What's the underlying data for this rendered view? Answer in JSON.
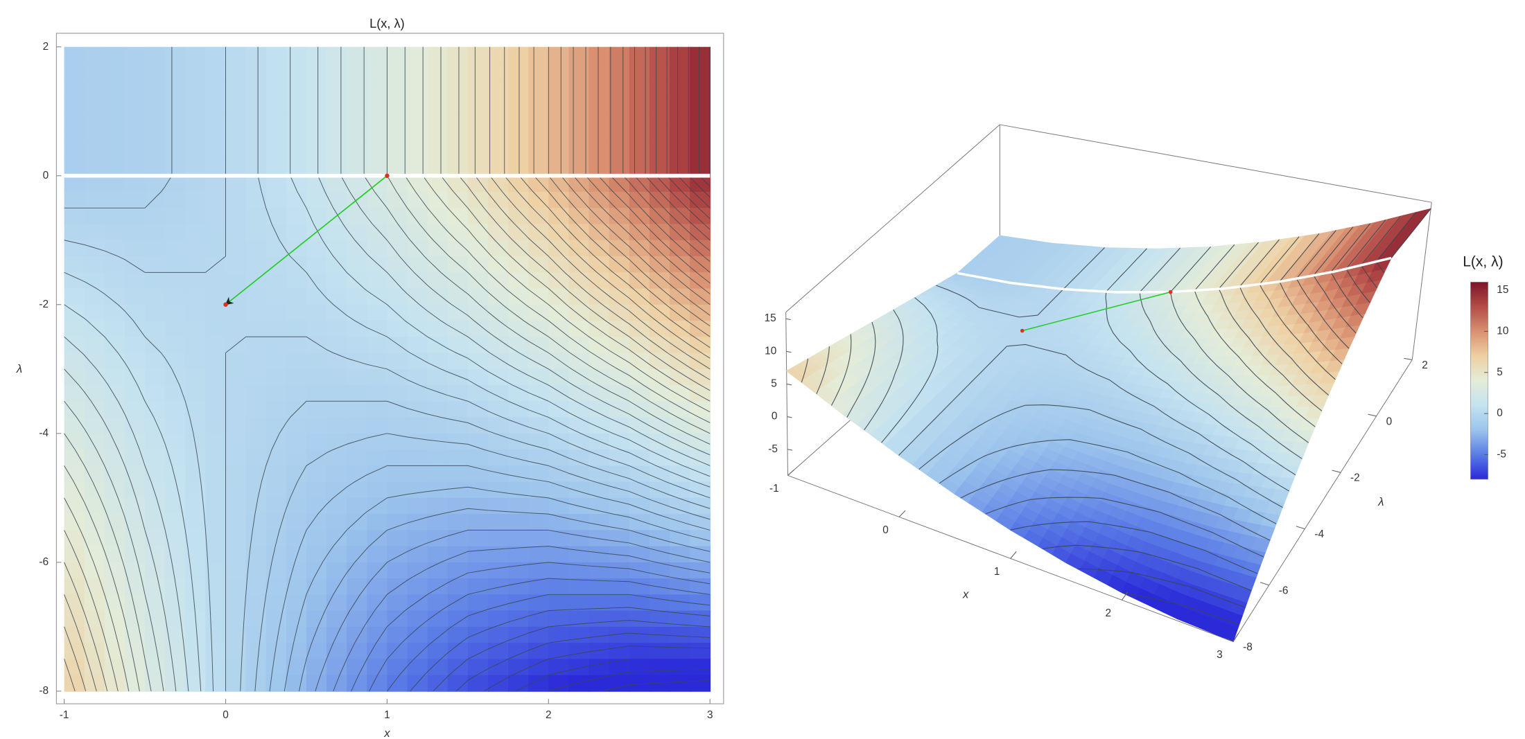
{
  "chart_data": [
    {
      "type": "contour",
      "title": "L(x, λ)",
      "x_label": "x",
      "y_label": "λ",
      "x": [
        -1,
        -0.5,
        0,
        0.5,
        1,
        1.5,
        2,
        2.5,
        3
      ],
      "y": [
        2,
        1,
        0,
        -1,
        -2,
        -3,
        -4,
        -5,
        -6,
        -7,
        -8
      ],
      "z": [
        [
          -1,
          -0.75,
          0,
          1.25,
          3,
          5.25,
          8,
          11.25,
          15
        ],
        [
          -1,
          -0.75,
          0,
          1.25,
          3,
          5.25,
          8,
          11.25,
          15
        ],
        [
          -1,
          -0.75,
          0,
          1.25,
          3,
          5.25,
          8,
          11.25,
          15
        ],
        [
          0,
          -0.25,
          0,
          0.75,
          2,
          3.75,
          6,
          8.75,
          12
        ],
        [
          1,
          0.25,
          0,
          0.25,
          1,
          2.25,
          4,
          6.25,
          9
        ],
        [
          2,
          0.75,
          0,
          -0.25,
          0,
          0.75,
          2,
          3.75,
          6
        ],
        [
          3,
          1.25,
          0,
          -0.75,
          -1,
          -0.75,
          0,
          1.25,
          3
        ],
        [
          4,
          1.75,
          0,
          -1.25,
          -2,
          -2.25,
          -2,
          -1.25,
          0
        ],
        [
          5,
          2.25,
          0,
          -1.75,
          -3,
          -3.75,
          -4,
          -3.75,
          -3
        ],
        [
          6,
          2.75,
          0,
          -2.25,
          -4,
          -5.25,
          -6,
          -6.25,
          -6
        ],
        [
          7,
          3.25,
          0,
          -2.75,
          -5,
          -6.75,
          -8,
          -8.75,
          -9
        ]
      ],
      "xlim": [
        -1,
        3
      ],
      "ylim": [
        -8,
        2
      ],
      "xticks": [
        -1,
        0,
        1,
        2,
        3
      ],
      "yticks": [
        -8,
        -6,
        -4,
        -2,
        0,
        2
      ],
      "zlim": [
        -8,
        16
      ],
      "contour_step": 0.5,
      "contour_color": "#3a4650",
      "colormap": [
        "#2a2ad8",
        "#5a7ce6",
        "#9cc4ec",
        "#c4e2f0",
        "#e4ecd8",
        "#eed0a4",
        "#d99070",
        "#b44c48",
        "#7e1428"
      ],
      "constraint": {
        "y": 0,
        "color": "#ffffff"
      },
      "path": {
        "x": [
          1,
          0
        ],
        "y": [
          0,
          -2
        ],
        "color": "#22cc22",
        "point_color": "#e03020"
      }
    },
    {
      "type": "surface3d",
      "x_label": "x",
      "y_label": "λ",
      "xlim": [
        -1,
        3
      ],
      "ylim": [
        -8,
        2
      ],
      "zlim": [
        -9,
        16
      ],
      "xticks": [
        -1,
        0,
        1,
        2,
        3
      ],
      "yticks": [
        -8,
        -6,
        -4,
        -2,
        0,
        2
      ],
      "zticks": [
        -5,
        0,
        5,
        10,
        15
      ],
      "colorbar": {
        "title": "L(x, λ)",
        "ticks": [
          -5,
          0,
          5,
          10,
          15
        ]
      }
    }
  ]
}
